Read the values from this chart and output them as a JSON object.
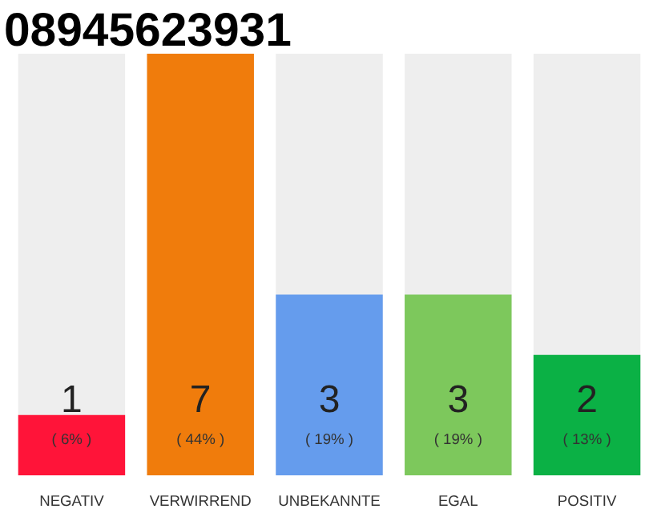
{
  "chart_data": {
    "type": "bar",
    "title": "08945623931",
    "categories": [
      "NEGATIV",
      "VERWIRREND",
      "UNBEKANNTE",
      "EGAL",
      "POSITIV"
    ],
    "values": [
      1,
      7,
      3,
      3,
      2
    ],
    "colors": [
      "#ff1439",
      "#f07c0c",
      "#659ced",
      "#7dc85c",
      "#0bb145"
    ],
    "data_labels": true,
    "annotations": [
      "( 6% )",
      "( 44% )",
      "( 19% )",
      "( 19% )",
      "( 13% )"
    ]
  }
}
